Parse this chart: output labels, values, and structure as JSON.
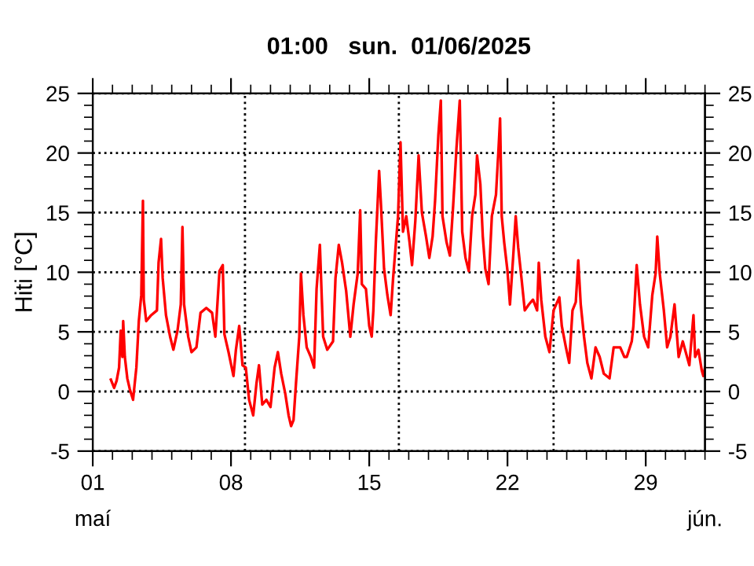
{
  "chart_data": {
    "type": "line",
    "title": "01:00   sun.  01/06/2025",
    "ylabel": "Hiti [°C]",
    "grid": "y",
    "annotations": [
      "maí",
      "jún."
    ],
    "line_style": "solid",
    "marker": "none",
    "xlim": [
      "2025-05-01",
      "2025-06-01"
    ],
    "xticks": [
      {
        "value": "2025-05-01",
        "label": "01"
      },
      {
        "value": "2025-05-02",
        "label": null
      },
      {
        "value": "2025-05-03",
        "label": null
      },
      {
        "value": "2025-05-04",
        "label": null
      },
      {
        "value": "2025-05-05",
        "label": null
      },
      {
        "value": "2025-05-06",
        "label": null
      },
      {
        "value": "2025-05-07",
        "label": null
      },
      {
        "value": "2025-05-08",
        "label": "08"
      },
      {
        "value": "2025-05-09",
        "label": null
      },
      {
        "value": "2025-05-10",
        "label": null
      },
      {
        "value": "2025-05-11",
        "label": null
      },
      {
        "value": "2025-05-12",
        "label": null
      },
      {
        "value": "2025-05-13",
        "label": null
      },
      {
        "value": "2025-05-14",
        "label": null
      },
      {
        "value": "2025-05-15",
        "label": "15"
      },
      {
        "value": "2025-05-16",
        "label": null
      },
      {
        "value": "2025-05-17",
        "label": null
      },
      {
        "value": "2025-05-18",
        "label": null
      },
      {
        "value": "2025-05-19",
        "label": null
      },
      {
        "value": "2025-05-20",
        "label": null
      },
      {
        "value": "2025-05-21",
        "label": null
      },
      {
        "value": "2025-05-22",
        "label": "22"
      },
      {
        "value": "2025-05-23",
        "label": null
      },
      {
        "value": "2025-05-24",
        "label": null
      },
      {
        "value": "2025-05-25",
        "label": null
      },
      {
        "value": "2025-05-26",
        "label": null
      },
      {
        "value": "2025-05-27",
        "label": null
      },
      {
        "value": "2025-05-28",
        "label": null
      },
      {
        "value": "2025-05-29",
        "label": "29"
      },
      {
        "value": "2025-05-30",
        "label": null
      },
      {
        "value": "2025-05-31",
        "label": null
      },
      {
        "value": "2025-06-01",
        "label": null
      }
    ],
    "ylim": [
      -5,
      25
    ],
    "yticks": [
      -5,
      {
        "value": -4,
        "label": null
      },
      {
        "value": -3,
        "label": null
      },
      {
        "value": -2,
        "label": null
      },
      {
        "value": -1,
        "label": null
      },
      0,
      {
        "value": 1,
        "label": null
      },
      {
        "value": 2,
        "label": null
      },
      {
        "value": 3,
        "label": null
      },
      {
        "value": 4,
        "label": null
      },
      5,
      {
        "value": 6,
        "label": null
      },
      {
        "value": 7,
        "label": null
      },
      {
        "value": 8,
        "label": null
      },
      {
        "value": 9,
        "label": null
      },
      10,
      {
        "value": 11,
        "label": null
      },
      {
        "value": 12,
        "label": null
      },
      {
        "value": 13,
        "label": null
      },
      {
        "value": 14,
        "label": null
      },
      15,
      {
        "value": 16,
        "label": null
      },
      {
        "value": 17,
        "label": null
      },
      {
        "value": 18,
        "label": null
      },
      {
        "value": 19,
        "label": null
      },
      20,
      {
        "value": 21,
        "label": null
      },
      {
        "value": 22,
        "label": null
      },
      {
        "value": 23,
        "label": null
      },
      {
        "value": 24,
        "label": null
      },
      25
    ],
    "y2lim": [
      -5,
      25
    ],
    "y2ticks": [
      -5,
      {
        "value": -4,
        "label": null
      },
      {
        "value": -3,
        "label": null
      },
      {
        "value": -2,
        "label": null
      },
      {
        "value": -1,
        "label": null
      },
      0,
      {
        "value": 1,
        "label": null
      },
      {
        "value": 2,
        "label": null
      },
      {
        "value": 3,
        "label": null
      },
      {
        "value": 4,
        "label": null
      },
      5,
      {
        "value": 6,
        "label": null
      },
      {
        "value": 7,
        "label": null
      },
      {
        "value": 8,
        "label": null
      },
      {
        "value": 9,
        "label": null
      },
      10,
      {
        "value": 11,
        "label": null
      },
      {
        "value": 12,
        "label": null
      },
      {
        "value": 13,
        "label": null
      },
      {
        "value": 14,
        "label": null
      },
      15,
      {
        "value": 16,
        "label": null
      },
      {
        "value": 17,
        "label": null
      },
      {
        "value": 18,
        "label": null
      },
      {
        "value": 19,
        "label": null
      },
      20,
      {
        "value": 21,
        "label": null
      },
      {
        "value": 22,
        "label": null
      },
      {
        "value": 23,
        "label": null
      },
      {
        "value": 24,
        "label": null
      },
      25
    ],
    "ref_lines": [
      {
        "axis": "x",
        "value": "2025-05-08T17:00",
        "color": "#000000",
        "line_style": "dotted"
      },
      {
        "axis": "x",
        "value": "2025-05-16T12:00",
        "color": "#000000",
        "line_style": "dotted"
      },
      {
        "axis": "x",
        "value": "2025-05-24T08:00",
        "color": "#000000",
        "line_style": "dotted"
      }
    ],
    "x": [
      "2025-05-01T22:00",
      "2025-05-02T02:00",
      "2025-05-02T05:00",
      "2025-05-02T08:00",
      "2025-05-02T10:00",
      "2025-05-02T12:00",
      "2025-05-02T13:00",
      "2025-05-02T15:00",
      "2025-05-02T18:00",
      "2025-05-02T21:00",
      "2025-05-03T01:00",
      "2025-05-03T05:00",
      "2025-05-03T08:00",
      "2025-05-03T11:00",
      "2025-05-03T13:00",
      "2025-05-03T14:00",
      "2025-05-03T17:00",
      "2025-05-03T23:00",
      "2025-05-04T06:00",
      "2025-05-04T08:00",
      "2025-05-04T11:00",
      "2025-05-04T13:00",
      "2025-05-04T17:00",
      "2025-05-04T22:00",
      "2025-05-05T02:00",
      "2025-05-05T07:00",
      "2025-05-05T11:00",
      "2025-05-05T13:00",
      "2025-05-05T15:00",
      "2025-05-05T20:00",
      "2025-05-06T00:00",
      "2025-05-06T06:00",
      "2025-05-06T11:00",
      "2025-05-06T18:00",
      "2025-05-07T01:00",
      "2025-05-07T05:00",
      "2025-05-07T10:00",
      "2025-05-07T14:00",
      "2025-05-07T16:00",
      "2025-05-07T21:00",
      "2025-05-08T03:00",
      "2025-05-08T06:00",
      "2025-05-08T10:00",
      "2025-05-08T14:00",
      "2025-05-08T18:00",
      "2025-05-08T22:00",
      "2025-05-09T03:00",
      "2025-05-09T07:00",
      "2025-05-09T10:00",
      "2025-05-09T14:00",
      "2025-05-09T19:00",
      "2025-05-10T00:00",
      "2025-05-10T05:00",
      "2025-05-10T09:00",
      "2025-05-10T13:00",
      "2025-05-10T18:00",
      "2025-05-10T22:00",
      "2025-05-11T01:00",
      "2025-05-11T04:00",
      "2025-05-11T07:00",
      "2025-05-11T11:00",
      "2025-05-11T13:00",
      "2025-05-11T16:00",
      "2025-05-11T20:00",
      "2025-05-12T01:00",
      "2025-05-12T05:00",
      "2025-05-12T08:00",
      "2025-05-12T12:00",
      "2025-05-12T16:00",
      "2025-05-12T21:00",
      "2025-05-13T04:00",
      "2025-05-13T07:00",
      "2025-05-13T11:00",
      "2025-05-13T15:00",
      "2025-05-13T20:00",
      "2025-05-14T01:00",
      "2025-05-14T05:00",
      "2025-05-14T10:00",
      "2025-05-14T13:00",
      "2025-05-14T15:00",
      "2025-05-14T20:00",
      "2025-05-15T00:00",
      "2025-05-15T03:00",
      "2025-05-15T05:00",
      "2025-05-15T08:00",
      "2025-05-15T12:00",
      "2025-05-15T14:00",
      "2025-05-15T18:00",
      "2025-05-15T22:00",
      "2025-05-16T02:00",
      "2025-05-16T05:00",
      "2025-05-16T11:00",
      "2025-05-16T14:00",
      "2025-05-16T17:00",
      "2025-05-16T21:00",
      "2025-05-17T01:00",
      "2025-05-17T04:00",
      "2025-05-17T08:00",
      "2025-05-17T12:00",
      "2025-05-17T16:00",
      "2025-05-17T21:00",
      "2025-05-18T01:00",
      "2025-05-18T05:00",
      "2025-05-18T08:00",
      "2025-05-18T12:00",
      "2025-05-18T15:00",
      "2025-05-18T17:00",
      "2025-05-18T22:00",
      "2025-05-19T02:00",
      "2025-05-19T06:00",
      "2025-05-19T10:00",
      "2025-05-19T14:00",
      "2025-05-19T17:00",
      "2025-05-19T21:00",
      "2025-05-20T01:00",
      "2025-05-20T05:00",
      "2025-05-20T09:00",
      "2025-05-20T11:00",
      "2025-05-20T15:00",
      "2025-05-20T18:00",
      "2025-05-20T21:00",
      "2025-05-21T01:00",
      "2025-05-21T05:00",
      "2025-05-21T10:00",
      "2025-05-21T13:00",
      "2025-05-21T15:00",
      "2025-05-21T17:00",
      "2025-05-21T20:00",
      "2025-05-22T00:00",
      "2025-05-22T03:00",
      "2025-05-22T07:00",
      "2025-05-22T10:00",
      "2025-05-22T13:00",
      "2025-05-22T17:00",
      "2025-05-22T21:00",
      "2025-05-23T02:00",
      "2025-05-23T07:00",
      "2025-05-23T12:00",
      "2025-05-23T14:00",
      "2025-05-23T17:00",
      "2025-05-23T22:00",
      "2025-05-24T03:00",
      "2025-05-24T08:00",
      "2025-05-24T15:00",
      "2025-05-24T18:00",
      "2025-05-24T23:00",
      "2025-05-25T03:00",
      "2025-05-25T07:00",
      "2025-05-25T11:00",
      "2025-05-25T14:00",
      "2025-05-25T17:00",
      "2025-05-25T21:00",
      "2025-05-26T01:00",
      "2025-05-26T06:00",
      "2025-05-26T11:00",
      "2025-05-26T16:00",
      "2025-05-26T21:00",
      "2025-05-27T04:00",
      "2025-05-27T09:00",
      "2025-05-27T17:00",
      "2025-05-27T22:00",
      "2025-05-28T01:00",
      "2025-05-28T07:00",
      "2025-05-28T09:00",
      "2025-05-28T13:00",
      "2025-05-28T17:00",
      "2025-05-28T22:00",
      "2025-05-29T03:00",
      "2025-05-29T08:00",
      "2025-05-29T12:00",
      "2025-05-29T14:00",
      "2025-05-29T17:00",
      "2025-05-29T22:00",
      "2025-05-30T02:00",
      "2025-05-30T06:00",
      "2025-05-30T11:00",
      "2025-05-30T16:00",
      "2025-05-30T21:00",
      "2025-05-30T23:00",
      "2025-05-31T05:00",
      "2025-05-31T10:00",
      "2025-05-31T12:00",
      "2025-05-31T16:00",
      "2025-05-31T20:00",
      "2025-05-31T22:00",
      "2025-06-01T00:00"
    ],
    "series": [
      {
        "color": "#ff0000",
        "values": [
          1.0,
          0.3,
          0.9,
          2.0,
          5.1,
          2.9,
          5.9,
          2.9,
          1.1,
          0.2,
          -0.7,
          2.0,
          5.9,
          8.1,
          16.0,
          7.7,
          5.9,
          6.4,
          6.8,
          10.8,
          12.8,
          9.5,
          6.4,
          4.6,
          3.5,
          5.1,
          7.3,
          13.8,
          7.3,
          4.6,
          3.3,
          3.7,
          6.6,
          7.0,
          6.6,
          4.6,
          10.1,
          10.6,
          4.8,
          3.3,
          1.3,
          3.5,
          5.5,
          2.2,
          2.0,
          -0.7,
          -2.0,
          0.7,
          2.2,
          -1.1,
          -0.7,
          -1.3,
          2.0,
          3.3,
          1.5,
          -0.2,
          -2.0,
          -2.9,
          -2.4,
          0.7,
          4.6,
          9.9,
          6.4,
          3.7,
          2.9,
          2.0,
          8.6,
          12.3,
          4.6,
          3.5,
          4.2,
          9.5,
          12.3,
          10.8,
          8.4,
          4.6,
          7.3,
          9.9,
          15.2,
          9.0,
          8.6,
          5.5,
          4.6,
          6.8,
          12.5,
          18.5,
          16.0,
          10.3,
          8.1,
          6.4,
          9.5,
          14.7,
          20.9,
          13.4,
          14.7,
          12.5,
          10.6,
          14.3,
          19.8,
          15.0,
          13.0,
          11.2,
          13.0,
          16.0,
          21.5,
          24.4,
          14.7,
          12.5,
          11.4,
          15.6,
          20.4,
          24.4,
          13.4,
          11.2,
          10.1,
          14.7,
          16.5,
          19.8,
          17.4,
          13.0,
          10.3,
          9.0,
          14.7,
          16.5,
          20.2,
          22.9,
          14.7,
          12.5,
          10.1,
          7.3,
          11.4,
          14.7,
          12.1,
          9.5,
          6.8,
          7.3,
          7.7,
          6.8,
          10.8,
          7.7,
          4.6,
          3.3,
          6.8,
          7.9,
          5.5,
          3.7,
          2.4,
          6.8,
          7.5,
          11.0,
          7.3,
          4.6,
          2.4,
          1.1,
          3.7,
          2.9,
          1.5,
          1.1,
          3.7,
          3.7,
          2.9,
          2.9,
          4.2,
          5.5,
          10.6,
          7.3,
          4.6,
          3.7,
          8.1,
          9.9,
          13.0,
          9.9,
          6.8,
          3.7,
          4.6,
          7.3,
          2.9,
          4.2,
          3.7,
          2.2,
          6.4,
          2.9,
          3.5,
          1.8,
          1.3,
          2.0
        ]
      }
    ]
  }
}
